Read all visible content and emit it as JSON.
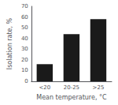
{
  "chart_data": {
    "type": "bar",
    "xlabel": "Mean temperature, °C",
    "ylabel": "Isolation rate, %",
    "categories": [
      "<20",
      "20-25",
      ">25"
    ],
    "values": [
      16,
      44,
      58
    ],
    "color": "#1a1a1a",
    "ylim": [
      0,
      70
    ],
    "yticks": [
      0,
      10,
      20,
      30,
      40,
      50,
      60,
      70
    ],
    "grid": false
  }
}
